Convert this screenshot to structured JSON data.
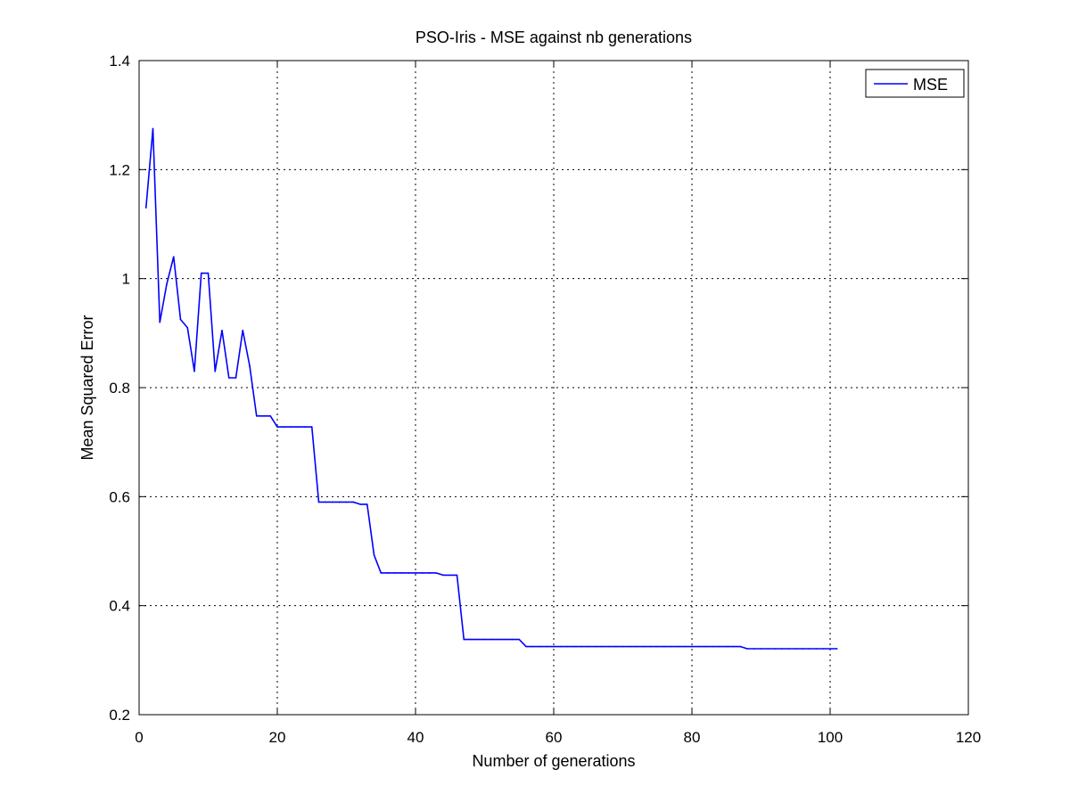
{
  "chart_data": {
    "type": "line",
    "title": "PSO-Iris - MSE against nb generations",
    "xlabel": "Number of generations",
    "ylabel": "Mean Squared Error",
    "xlim": [
      0,
      120
    ],
    "ylim": [
      0.2,
      1.4
    ],
    "xticks": [
      0,
      20,
      40,
      60,
      80,
      100,
      120
    ],
    "xtick_labels": [
      "0",
      "20",
      "40",
      "60",
      "80",
      "100",
      "120"
    ],
    "yticks": [
      0.2,
      0.4,
      0.6,
      0.8,
      1.0,
      1.2,
      1.4
    ],
    "ytick_labels": [
      "0.2",
      "0.4",
      "0.6",
      "0.8",
      "1",
      "1.2",
      "1.4"
    ],
    "grid": true,
    "legend_position": "top-right",
    "series": [
      {
        "name": "MSE",
        "color": "#0000ff",
        "x": [
          1,
          2,
          3,
          4,
          5,
          6,
          7,
          8,
          9,
          10,
          11,
          12,
          13,
          14,
          15,
          16,
          17,
          18,
          19,
          20,
          21,
          22,
          23,
          24,
          25,
          26,
          27,
          28,
          29,
          30,
          31,
          32,
          33,
          34,
          35,
          36,
          37,
          38,
          39,
          40,
          41,
          42,
          43,
          44,
          45,
          46,
          47,
          48,
          49,
          50,
          51,
          52,
          53,
          54,
          55,
          56,
          57,
          58,
          59,
          60,
          61,
          62,
          63,
          64,
          65,
          66,
          67,
          68,
          69,
          70,
          71,
          72,
          73,
          74,
          75,
          76,
          77,
          78,
          79,
          80,
          81,
          82,
          83,
          84,
          85,
          86,
          87,
          88,
          89,
          90,
          91,
          92,
          93,
          94,
          95,
          96,
          97,
          98,
          99,
          100,
          101
        ],
        "y": [
          1.13,
          1.275,
          0.92,
          0.99,
          1.04,
          0.925,
          0.91,
          0.83,
          1.01,
          1.01,
          0.83,
          0.905,
          0.818,
          0.818,
          0.905,
          0.84,
          0.748,
          0.748,
          0.748,
          0.728,
          0.728,
          0.728,
          0.728,
          0.728,
          0.728,
          0.59,
          0.59,
          0.59,
          0.59,
          0.59,
          0.59,
          0.586,
          0.586,
          0.493,
          0.46,
          0.46,
          0.46,
          0.46,
          0.46,
          0.46,
          0.46,
          0.46,
          0.46,
          0.456,
          0.456,
          0.456,
          0.338,
          0.338,
          0.338,
          0.338,
          0.338,
          0.338,
          0.338,
          0.338,
          0.338,
          0.325,
          0.325,
          0.325,
          0.325,
          0.325,
          0.325,
          0.325,
          0.325,
          0.325,
          0.325,
          0.325,
          0.325,
          0.325,
          0.325,
          0.325,
          0.325,
          0.325,
          0.325,
          0.325,
          0.325,
          0.325,
          0.325,
          0.325,
          0.325,
          0.325,
          0.325,
          0.325,
          0.325,
          0.325,
          0.325,
          0.325,
          0.325,
          0.321,
          0.321,
          0.321,
          0.321,
          0.321,
          0.321,
          0.321,
          0.321,
          0.321,
          0.321,
          0.321,
          0.321,
          0.321,
          0.321
        ]
      }
    ]
  }
}
